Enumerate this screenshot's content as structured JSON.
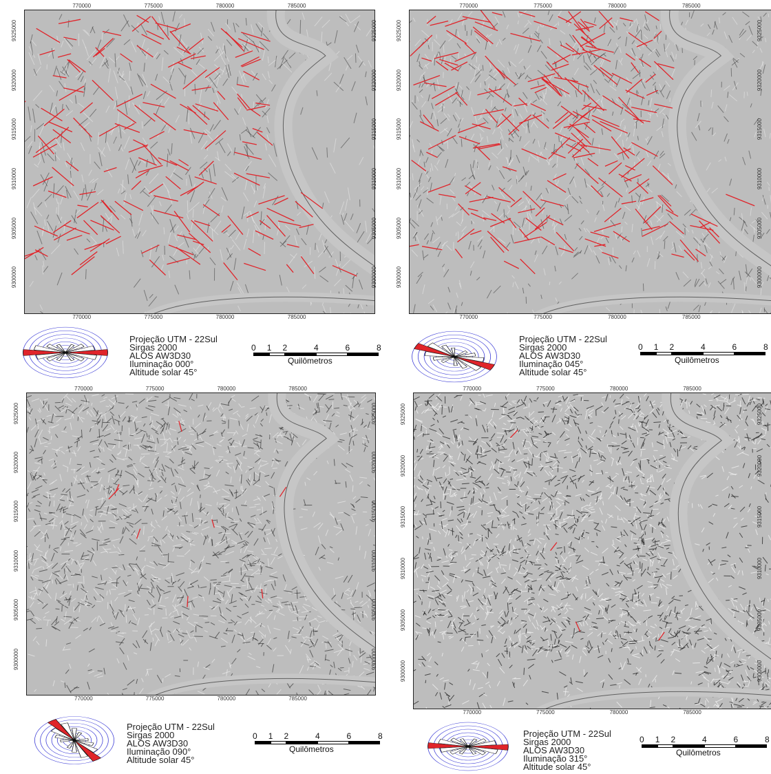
{
  "panels": [
    {
      "id": "p1",
      "legend": [
        "Projeção UTM - 22Sul",
        "Sirgas 2000",
        "ALOS AW3D30",
        "Iluminação 000°",
        "Altitude solar 45°"
      ],
      "x_ticks": [
        "770000",
        "775000",
        "780000",
        "785000"
      ],
      "y_ticks": [
        "9325000",
        "9320000",
        "9315000",
        "9310000",
        "9305000",
        "9300000"
      ],
      "rose_azimuth": 90,
      "style": "strong-lineaments"
    },
    {
      "id": "p2",
      "legend": [
        "Projeção UTM - 22Sul",
        "Sirgas 2000",
        "ALOS AW3D30",
        "Iluminação 045°",
        "Altitude solar 45°"
      ],
      "x_ticks": [
        "770000",
        "775000",
        "780000",
        "785000"
      ],
      "y_ticks": [
        "9325000",
        "9320000",
        "9315000",
        "9310000",
        "9305000",
        "9300000"
      ],
      "rose_azimuth": 115,
      "style": "many-lineaments"
    },
    {
      "id": "p3",
      "legend": [
        "Projeção UTM - 22Sul",
        "Sirgas 2000",
        "ALOS AW3D30",
        "Iluminação 090°",
        "Altitude solar 45°"
      ],
      "x_ticks": [
        "770000",
        "775000",
        "780000",
        "785000"
      ],
      "y_ticks": [
        "9325000",
        "9320000",
        "9315000",
        "9310000",
        "9305000",
        "9300000"
      ],
      "rose_azimuth": 145,
      "style": "few-lineaments"
    },
    {
      "id": "p4",
      "legend": [
        "Projeção UTM - 22Sul",
        "Sirgas 2000",
        "ALOS AW3D30",
        "Iluminação 315°",
        "Altitude solar 45°"
      ],
      "x_ticks": [
        "770000",
        "775000",
        "780000",
        "785000"
      ],
      "y_ticks": [
        "9325000",
        "9320000",
        "9315000",
        "9310000",
        "9305000",
        "9300000"
      ],
      "rose_azimuth": 92,
      "style": "dense-texture"
    }
  ],
  "scale": {
    "numbers": [
      "0",
      "1",
      "2",
      "4",
      "6",
      "8"
    ],
    "unit": "Quilômetros"
  },
  "colors": {
    "lineament": "#e0242a",
    "rose_ring": "#3b3bd6",
    "relief_base": "#b8b8b8"
  }
}
